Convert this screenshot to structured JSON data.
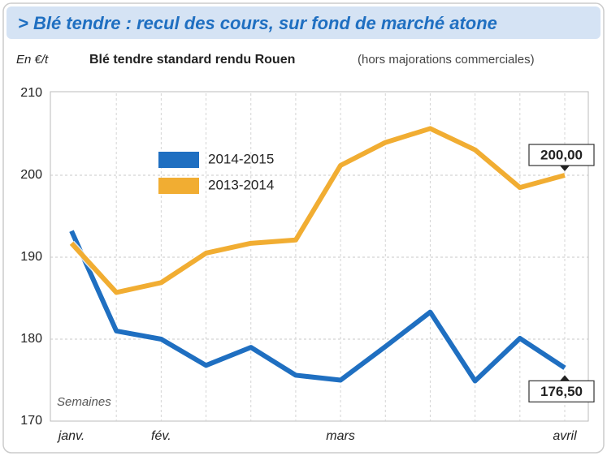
{
  "chart_data": {
    "type": "line",
    "banner": "> Blé tendre : recul des cours, sur fond de marché atone",
    "unit_label": "En €/t",
    "title": "Blé tendre standard rendu Rouen",
    "subtitle": "(hors majorations commerciales)",
    "x_label": "Semaines",
    "categories": [
      "janv.",
      null,
      "fév.",
      null,
      null,
      null,
      "mars",
      null,
      null,
      null,
      null,
      "avril"
    ],
    "series": [
      {
        "name": "2014-2015",
        "color": "#1f6fc1",
        "values": [
          193.2,
          181,
          180,
          176.8,
          179,
          175.6,
          175,
          179.1,
          183.3,
          174.9,
          180.1,
          176.5
        ],
        "value_labels": [
          null,
          null,
          null,
          null,
          null,
          null,
          null,
          null,
          null,
          null,
          null,
          "176,50"
        ]
      },
      {
        "name": "2013-2014",
        "color": "#f1ad32",
        "values": [
          191.7,
          185.7,
          186.9,
          190.5,
          191.7,
          192.1,
          201.2,
          204,
          205.7,
          203.1,
          198.5,
          200
        ],
        "value_labels": [
          null,
          null,
          null,
          null,
          null,
          null,
          null,
          null,
          null,
          null,
          null,
          "200,00"
        ]
      }
    ],
    "ylim": [
      170,
      210
    ],
    "yticks": [
      170,
      180,
      190,
      200,
      210
    ],
    "grid": true
  }
}
